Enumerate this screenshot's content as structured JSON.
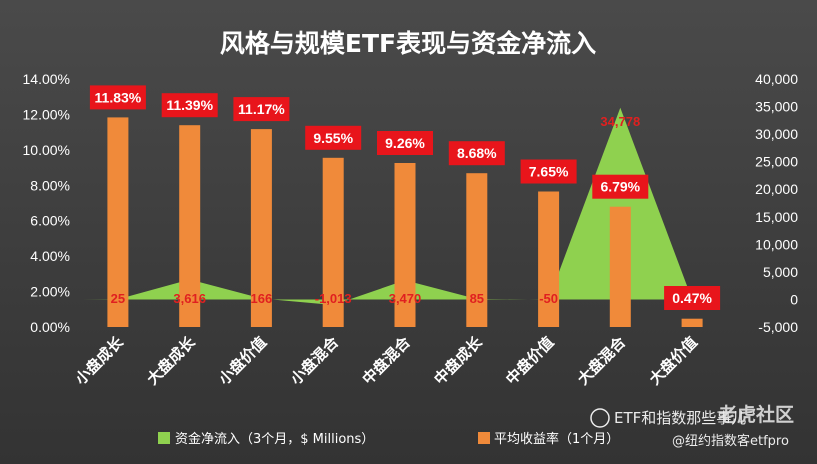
{
  "chart_data": {
    "type": "bar",
    "title": "风格与规模ETF表现与资金净流入",
    "categories": [
      "小盘成长",
      "大盘成长",
      "小盘价值",
      "小盘混合",
      "中盘混合",
      "中盘成长",
      "中盘价值",
      "大盘混合",
      "大盘价值"
    ],
    "series": [
      {
        "name": "平均收益率（1个月）",
        "type": "bar",
        "axis": "left",
        "values": [
          11.83,
          11.39,
          11.17,
          9.55,
          9.26,
          8.68,
          7.65,
          6.79,
          0.47
        ],
        "labels": [
          "11.83%",
          "11.39%",
          "11.17%",
          "9.55%",
          "9.26%",
          "8.68%",
          "7.65%",
          "6.79%",
          "0.47%"
        ]
      },
      {
        "name": "资金净流入（3个月，$ Millions）",
        "type": "area",
        "axis": "right",
        "values": [
          25,
          3616,
          166,
          -1013,
          3470,
          85,
          -50,
          34778,
          0
        ],
        "labels": [
          "25",
          "3,616",
          "166",
          "-1,013",
          "3,470",
          "85",
          "-50",
          "34,778",
          ""
        ]
      }
    ],
    "y_left": {
      "ylim": [
        0,
        14
      ],
      "ticks": [
        "0.00%",
        "2.00%",
        "4.00%",
        "6.00%",
        "8.00%",
        "10.00%",
        "12.00%",
        "14.00%"
      ]
    },
    "y_right": {
      "ylim": [
        -5000,
        40000
      ],
      "ticks": [
        "-5,000",
        "0",
        "5,000",
        "10,000",
        "15,000",
        "20,000",
        "25,000",
        "30,000",
        "35,000",
        "40,000"
      ]
    },
    "legend": {
      "position": "bottom",
      "items": [
        "资金净流入（3个月，$ Millions）",
        "平均收益率（1个月）"
      ]
    },
    "grid": false
  },
  "colors": {
    "bar": "#f08a3a",
    "area": "#8fd14f",
    "label_box": "#e8151b",
    "flow_label": "#e02020",
    "axis_text": "#ffffff"
  },
  "watermark": {
    "channel": "ETF和指数那些事儿",
    "site": "老虎社区",
    "author": "@纽约指数客etfpro"
  }
}
